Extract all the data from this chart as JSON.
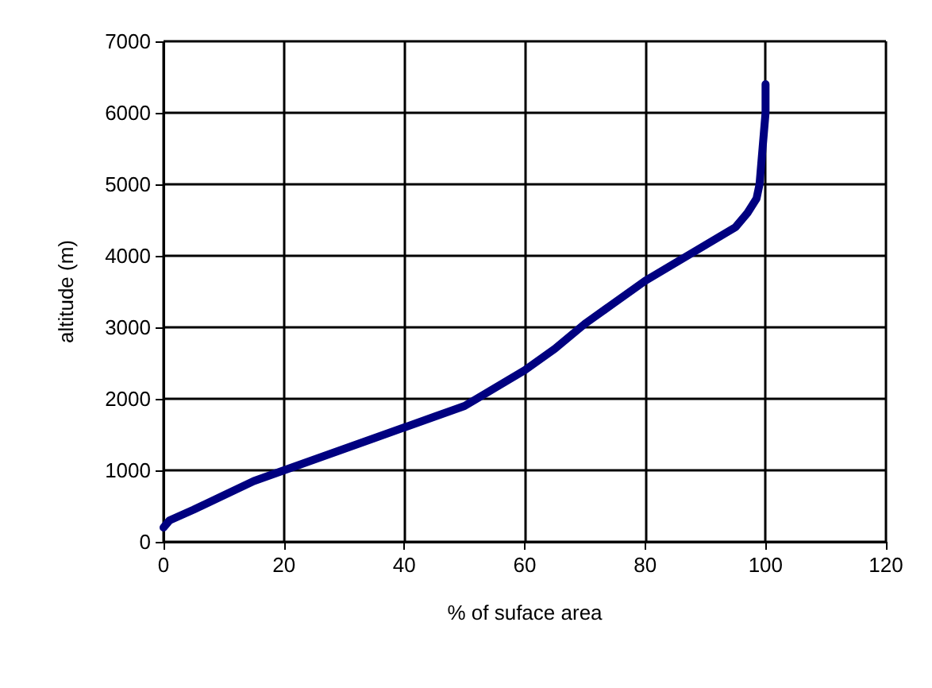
{
  "chart_data": {
    "type": "line",
    "xlabel": "% of suface area",
    "ylabel": "altitude (m)",
    "x": [
      0,
      1,
      5,
      10,
      15,
      20,
      25,
      30,
      35,
      40,
      45,
      50,
      55,
      60,
      65,
      70,
      75,
      80,
      85,
      90,
      95,
      97,
      98.5,
      99,
      99.5,
      100,
      100
    ],
    "series": [
      {
        "color": "#000080",
        "values": [
          200,
          300,
          450,
          650,
          850,
          1000,
          1150,
          1300,
          1450,
          1600,
          1750,
          1900,
          2150,
          2400,
          2700,
          3050,
          3350,
          3650,
          3900,
          4150,
          4400,
          4600,
          4800,
          5000,
          5500,
          6000,
          6400
        ]
      }
    ],
    "xlim": [
      0,
      120
    ],
    "xticks": [
      0,
      20,
      40,
      60,
      80,
      100,
      120
    ],
    "ylim": [
      0,
      7000
    ],
    "yticks": [
      0,
      1000,
      2000,
      3000,
      4000,
      5000,
      6000,
      7000
    ],
    "grid": true,
    "marker": "none",
    "line_style": "solid"
  }
}
